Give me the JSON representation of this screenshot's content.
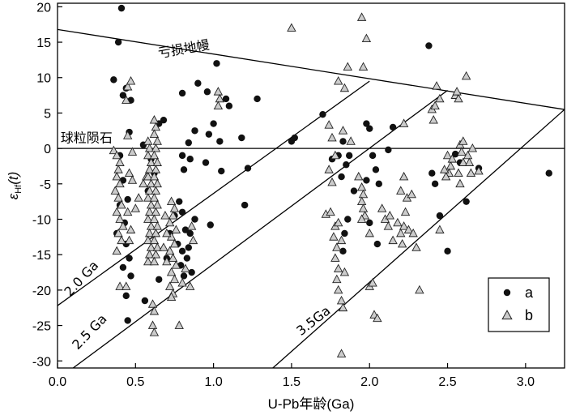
{
  "chart_data": {
    "type": "scatter",
    "xlabel": "U-Pb年龄(Ga)",
    "ylabel_main": "ε",
    "ylabel_sub": "Hf",
    "ylabel_suffix": "(t)",
    "xlim": [
      0.0,
      3.25
    ],
    "ylim": [
      -31,
      20.5
    ],
    "x_ticks": [
      0.0,
      0.5,
      1.0,
      1.5,
      2.0,
      2.5,
      3.0
    ],
    "x_tick_labels": [
      "0.0",
      "0.5",
      "1.0",
      "1.5",
      "2.0",
      "2.5",
      "3.0"
    ],
    "y_ticks": [
      20,
      15,
      10,
      5,
      0,
      -5,
      -10,
      -15,
      -20,
      -25,
      -30
    ],
    "y_tick_labels": [
      "20",
      "15",
      "10",
      "5",
      "0",
      "-5",
      "-10",
      "-15",
      "-20",
      "-25",
      "-30"
    ],
    "grid": false,
    "legend_position": "bottom-right",
    "reference_lines": [
      {
        "label": "亏损地幔",
        "points": [
          [
            0,
            16.8
          ],
          [
            3.25,
            5.5
          ]
        ]
      },
      {
        "label": "球粒陨石",
        "points": [
          [
            0,
            0
          ],
          [
            3.25,
            0
          ]
        ]
      },
      {
        "label": "2.0 Ga",
        "points": [
          [
            0,
            -22.2
          ],
          [
            2.0,
            9.5
          ]
        ]
      },
      {
        "label": "2.5 Ga",
        "points": [
          [
            0.1,
            -31
          ],
          [
            2.5,
            8.2
          ]
        ]
      },
      {
        "label": "3.5Ga",
        "points": [
          [
            1.38,
            -31
          ],
          [
            3.25,
            5.5
          ]
        ]
      }
    ],
    "annotations": [
      {
        "text": "亏损地幔",
        "x": 0.65,
        "y": 12.8,
        "angle": -10
      },
      {
        "text": "球粒陨石",
        "x": 0.02,
        "y": 0.9,
        "angle": 0
      },
      {
        "text": "2.0 Ga",
        "x": 0.08,
        "y": -21.0,
        "angle": -47
      },
      {
        "text": "2.5 Ga",
        "x": 0.13,
        "y": -28.5,
        "angle": -46
      },
      {
        "text": "3.5Ga",
        "x": 1.56,
        "y": -26.5,
        "angle": -38
      }
    ],
    "series": [
      {
        "name": "a",
        "marker": "circle",
        "color": "#111111",
        "points": [
          [
            0.39,
            15.0
          ],
          [
            0.41,
            19.8
          ],
          [
            0.36,
            9.7
          ],
          [
            0.42,
            7.5
          ],
          [
            0.44,
            8.5
          ],
          [
            0.47,
            6.8
          ],
          [
            0.46,
            2.3
          ],
          [
            0.4,
            -1.0
          ],
          [
            0.42,
            -4.5
          ],
          [
            0.45,
            -7.2
          ],
          [
            0.4,
            -8.0
          ],
          [
            0.43,
            -10.5
          ],
          [
            0.38,
            -12.0
          ],
          [
            0.44,
            -13.5
          ],
          [
            0.46,
            -15.5
          ],
          [
            0.42,
            -16.8
          ],
          [
            0.47,
            -18.0
          ],
          [
            0.44,
            -20.8
          ],
          [
            0.45,
            -24.3
          ],
          [
            0.55,
            0.5
          ],
          [
            0.6,
            -1.5
          ],
          [
            0.62,
            -3.5
          ],
          [
            0.58,
            -6.0
          ],
          [
            0.65,
            3.5
          ],
          [
            0.68,
            4.0
          ],
          [
            0.56,
            -21.5
          ],
          [
            0.65,
            -18.5
          ],
          [
            0.7,
            -15.5
          ],
          [
            0.72,
            -12.0
          ],
          [
            0.75,
            -9.5
          ],
          [
            0.78,
            -7.5
          ],
          [
            0.8,
            -9.0
          ],
          [
            0.82,
            -11.5
          ],
          [
            0.77,
            -13.5
          ],
          [
            0.8,
            -14.5
          ],
          [
            0.83,
            -15.5
          ],
          [
            0.85,
            -12.0
          ],
          [
            0.84,
            -14.0
          ],
          [
            0.79,
            -16.5
          ],
          [
            0.81,
            -18.0
          ],
          [
            0.86,
            -17.5
          ],
          [
            0.8,
            7.8
          ],
          [
            0.84,
            0.8
          ],
          [
            0.8,
            -1.0
          ],
          [
            0.85,
            -1.5
          ],
          [
            0.81,
            -3.0
          ],
          [
            0.88,
            2.5
          ],
          [
            0.9,
            9.2
          ],
          [
            0.95,
            -2.0
          ],
          [
            0.96,
            8.0
          ],
          [
            0.97,
            2.0
          ],
          [
            1.0,
            3.5
          ],
          [
            1.02,
            12.0
          ],
          [
            1.04,
            1.0
          ],
          [
            1.05,
            -3.2
          ],
          [
            1.08,
            7.0
          ],
          [
            1.1,
            6.0
          ],
          [
            1.18,
            1.5
          ],
          [
            1.2,
            -8.0
          ],
          [
            1.22,
            -2.8
          ],
          [
            1.28,
            7.0
          ],
          [
            0.98,
            -10.8
          ],
          [
            0.88,
            -10.0
          ],
          [
            1.5,
            1.0
          ],
          [
            1.52,
            1.5
          ],
          [
            1.7,
            4.8
          ],
          [
            1.76,
            -1.5
          ],
          [
            1.8,
            -1.0
          ],
          [
            1.83,
            1.0
          ],
          [
            1.85,
            -2.3
          ],
          [
            1.82,
            -4.0
          ],
          [
            1.86,
            -10.0
          ],
          [
            1.84,
            -12.0
          ],
          [
            1.83,
            -14.5
          ],
          [
            1.87,
            -1.0
          ],
          [
            1.98,
            3.5
          ],
          [
            2.0,
            2.8
          ],
          [
            2.02,
            -1.0
          ],
          [
            2.04,
            -3.0
          ],
          [
            2.06,
            -5.0
          ],
          [
            2.12,
            -0.2
          ],
          [
            2.15,
            3.0
          ],
          [
            1.9,
            -6.0
          ],
          [
            1.98,
            -4.5
          ],
          [
            2.0,
            -10.5
          ],
          [
            2.05,
            -13.5
          ],
          [
            2.38,
            14.5
          ],
          [
            2.4,
            -3.5
          ],
          [
            2.42,
            -5.0
          ],
          [
            2.45,
            -9.5
          ],
          [
            2.5,
            -14.5
          ],
          [
            2.55,
            -0.8
          ],
          [
            2.58,
            -2.0
          ],
          [
            2.62,
            -7.5
          ],
          [
            2.7,
            -2.8
          ],
          [
            3.15,
            -3.5
          ]
        ]
      },
      {
        "name": "b",
        "marker": "triangle",
        "color": "#cccccc",
        "points": [
          [
            0.36,
            -0.3
          ],
          [
            0.38,
            -1.0
          ],
          [
            0.4,
            -2.0
          ],
          [
            0.39,
            -3.0
          ],
          [
            0.38,
            -4.0
          ],
          [
            0.4,
            -5.0
          ],
          [
            0.37,
            -6.0
          ],
          [
            0.39,
            -7.0
          ],
          [
            0.41,
            -8.0
          ],
          [
            0.38,
            -9.0
          ],
          [
            0.4,
            -10.0
          ],
          [
            0.42,
            -11.0
          ],
          [
            0.39,
            -12.0
          ],
          [
            0.41,
            -13.0
          ],
          [
            0.38,
            -14.5
          ],
          [
            0.4,
            -19.5
          ],
          [
            0.44,
            -19.5
          ],
          [
            0.45,
            8.7
          ],
          [
            0.47,
            9.5
          ],
          [
            0.44,
            6.8
          ],
          [
            0.45,
            1.8
          ],
          [
            0.48,
            -0.5
          ],
          [
            0.46,
            -3.5
          ],
          [
            0.48,
            -4.5
          ],
          [
            0.45,
            -9.0
          ],
          [
            0.47,
            -11.5
          ],
          [
            0.46,
            -13.0
          ],
          [
            0.52,
            -7.0
          ],
          [
            0.5,
            -8.5
          ],
          [
            0.55,
            -5.0
          ],
          [
            0.57,
            -4.0
          ],
          [
            0.58,
            1.0
          ],
          [
            0.59,
            0.0
          ],
          [
            0.58,
            -1.0
          ],
          [
            0.6,
            -2.0
          ],
          [
            0.59,
            -3.0
          ],
          [
            0.58,
            -4.0
          ],
          [
            0.6,
            -5.0
          ],
          [
            0.59,
            -6.0
          ],
          [
            0.58,
            -7.0
          ],
          [
            0.6,
            -8.0
          ],
          [
            0.59,
            -9.0
          ],
          [
            0.58,
            -10.0
          ],
          [
            0.6,
            -11.0
          ],
          [
            0.59,
            -12.0
          ],
          [
            0.58,
            -13.0
          ],
          [
            0.6,
            -14.0
          ],
          [
            0.59,
            -15.0
          ],
          [
            0.58,
            -16.0
          ],
          [
            0.62,
            4.0
          ],
          [
            0.63,
            3.0
          ],
          [
            0.62,
            2.0
          ],
          [
            0.64,
            1.0
          ],
          [
            0.63,
            0.0
          ],
          [
            0.62,
            -1.0
          ],
          [
            0.64,
            -2.0
          ],
          [
            0.63,
            -3.0
          ],
          [
            0.62,
            -4.0
          ],
          [
            0.64,
            -5.0
          ],
          [
            0.63,
            -6.0
          ],
          [
            0.62,
            -7.0
          ],
          [
            0.64,
            -8.0
          ],
          [
            0.63,
            -9.0
          ],
          [
            0.62,
            -10.0
          ],
          [
            0.64,
            -11.0
          ],
          [
            0.63,
            -12.0
          ],
          [
            0.62,
            -13.0
          ],
          [
            0.64,
            -14.0
          ],
          [
            0.63,
            -15.0
          ],
          [
            0.62,
            -16.0
          ],
          [
            0.61,
            -22.0
          ],
          [
            0.62,
            -23.0
          ],
          [
            0.61,
            -25.0
          ],
          [
            0.62,
            -26.0
          ],
          [
            0.73,
            -7.5
          ],
          [
            0.75,
            -8.5
          ],
          [
            0.74,
            -9.5
          ],
          [
            0.72,
            -10.5
          ],
          [
            0.76,
            -11.5
          ],
          [
            0.73,
            -12.5
          ],
          [
            0.75,
            -13.5
          ],
          [
            0.72,
            -14.5
          ],
          [
            0.74,
            -15.5
          ],
          [
            0.76,
            -16.5
          ],
          [
            0.73,
            -17.5
          ],
          [
            0.75,
            -18.5
          ],
          [
            0.72,
            -19.5
          ],
          [
            0.74,
            -20.5
          ],
          [
            0.73,
            -21.0
          ],
          [
            0.78,
            -25.0
          ],
          [
            0.8,
            -19.0
          ],
          [
            0.82,
            -17.0
          ],
          [
            0.85,
            -19.5
          ],
          [
            0.87,
            -13.0
          ],
          [
            0.86,
            -11.0
          ],
          [
            0.69,
            -9.5
          ],
          [
            0.7,
            -12.0
          ],
          [
            0.68,
            -14.0
          ],
          [
            0.7,
            -16.0
          ],
          [
            1.03,
            8.0
          ],
          [
            1.04,
            7.0
          ],
          [
            1.03,
            6.0
          ],
          [
            1.5,
            17.0
          ],
          [
            1.74,
            3.3
          ],
          [
            1.76,
            1.5
          ],
          [
            1.78,
            -1.0
          ],
          [
            1.74,
            -3.0
          ],
          [
            1.76,
            -4.8
          ],
          [
            1.72,
            -9.3
          ],
          [
            1.75,
            -9.0
          ],
          [
            1.78,
            -11.0
          ],
          [
            1.77,
            -12.5
          ],
          [
            1.79,
            -14.0
          ],
          [
            1.78,
            -15.5
          ],
          [
            1.8,
            -17.0
          ],
          [
            1.79,
            -18.5
          ],
          [
            1.8,
            -20.0
          ],
          [
            1.82,
            -21.5
          ],
          [
            1.83,
            -22.5
          ],
          [
            1.84,
            -17.5
          ],
          [
            1.82,
            -13.0
          ],
          [
            1.8,
            -10.5
          ],
          [
            1.82,
            -29.0
          ],
          [
            1.8,
            9.5
          ],
          [
            1.84,
            8.5
          ],
          [
            1.86,
            11.5
          ],
          [
            1.95,
            18.5
          ],
          [
            1.98,
            15.5
          ],
          [
            1.96,
            11.5
          ],
          [
            1.83,
            2.5
          ],
          [
            1.88,
            1.0
          ],
          [
            1.95,
            -5.5
          ],
          [
            1.96,
            -6.5
          ],
          [
            1.95,
            -7.5
          ],
          [
            1.96,
            -8.5
          ],
          [
            1.97,
            -9.5
          ],
          [
            1.95,
            -10.0
          ],
          [
            1.93,
            -4.0
          ],
          [
            2.0,
            -12.0
          ],
          [
            2.0,
            -19.5
          ],
          [
            2.02,
            -19.0
          ],
          [
            2.03,
            -23.5
          ],
          [
            2.05,
            -24.0
          ],
          [
            2.08,
            -8.5
          ],
          [
            2.1,
            -10.0
          ],
          [
            2.12,
            -11.0
          ],
          [
            2.15,
            -13.0
          ],
          [
            2.13,
            -9.5
          ],
          [
            2.18,
            -10.5
          ],
          [
            2.2,
            -12.0
          ],
          [
            2.22,
            -11.0
          ],
          [
            2.21,
            -13.5
          ],
          [
            2.23,
            -9.0
          ],
          [
            2.24,
            -7.0
          ],
          [
            2.22,
            -4.0
          ],
          [
            2.25,
            -11.5
          ],
          [
            2.28,
            -12.0
          ],
          [
            2.3,
            -14.0
          ],
          [
            2.27,
            -6.5
          ],
          [
            2.2,
            -6.0
          ],
          [
            2.22,
            3.5
          ],
          [
            2.32,
            -20.0
          ],
          [
            2.4,
            5.5
          ],
          [
            2.42,
            6.0
          ],
          [
            2.41,
            4.0
          ],
          [
            2.43,
            8.8
          ],
          [
            2.45,
            7.0
          ],
          [
            2.45,
            -11.5
          ],
          [
            2.5,
            -1.0
          ],
          [
            2.52,
            -2.5
          ],
          [
            2.51,
            -3.5
          ],
          [
            2.49,
            -4.0
          ],
          [
            2.53,
            -1.5
          ],
          [
            2.55,
            7.5
          ],
          [
            2.57,
            7.0
          ],
          [
            2.56,
            8.0
          ],
          [
            2.58,
            0.5
          ],
          [
            2.59,
            -0.5
          ],
          [
            2.6,
            -2.0
          ],
          [
            2.57,
            -3.5
          ],
          [
            2.58,
            -5.0
          ],
          [
            2.62,
            10.2
          ],
          [
            2.63,
            -1.0
          ],
          [
            2.64,
            -2.0
          ],
          [
            2.65,
            -3.5
          ],
          [
            2.6,
            1.0
          ],
          [
            2.66,
            0.0
          ],
          [
            2.48,
            -3.0
          ],
          [
            2.7,
            -3.2
          ]
        ]
      }
    ]
  }
}
